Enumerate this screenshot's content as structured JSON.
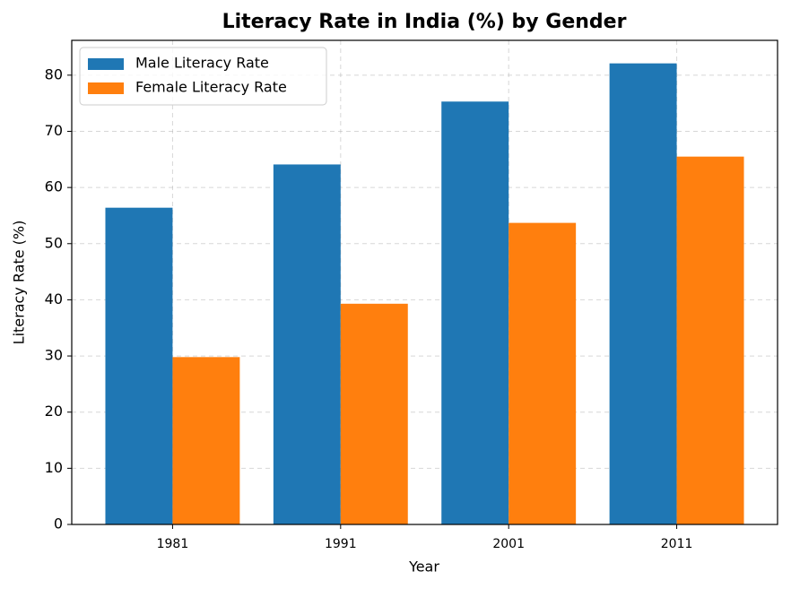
{
  "chart_data": {
    "type": "bar",
    "title": "Literacy Rate in India (%) by Gender",
    "x_label": "Year",
    "y_label": "Literacy Rate (%)",
    "categories": [
      "1981",
      "1991",
      "2001",
      "2011"
    ],
    "series": [
      {
        "name": "Male Literacy Rate",
        "color": "#1f77b4",
        "values": [
          56.4,
          64.1,
          75.3,
          82.1
        ]
      },
      {
        "name": "Female Literacy Rate",
        "color": "#ff7f0e",
        "values": [
          29.8,
          39.3,
          53.7,
          65.5
        ]
      }
    ],
    "ylim": [
      0,
      86.2
    ],
    "yticks": [
      0,
      10,
      20,
      30,
      40,
      50,
      60,
      70,
      80
    ],
    "grid": true,
    "legend": "upper-left"
  }
}
